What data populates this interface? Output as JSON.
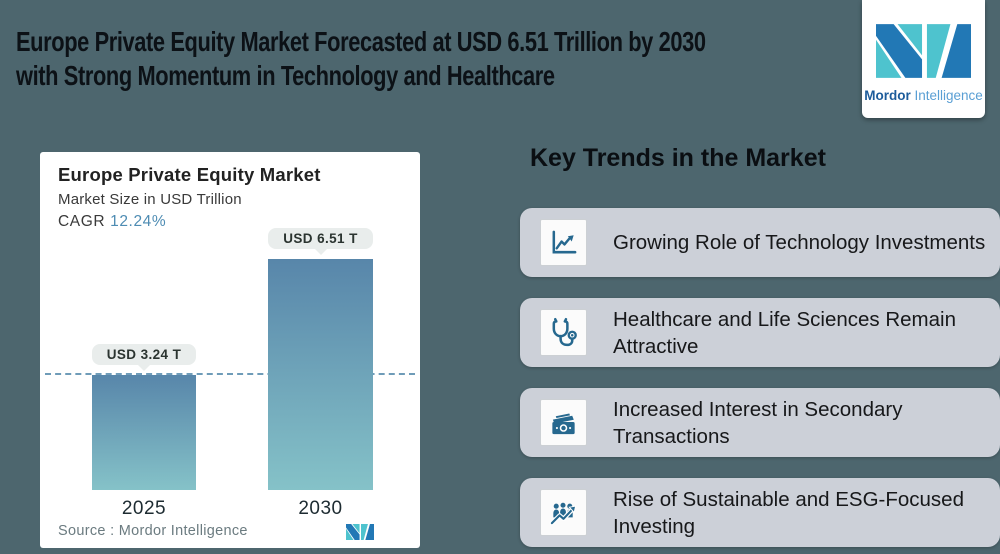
{
  "page": {
    "background": "#4d666e"
  },
  "header": {
    "title_line1": "Europe Private Equity Market Forecasted at USD 6.51 Trillion by 2030",
    "title_line2": "with Strong Momentum in Technology and Healthcare",
    "logo": {
      "brand_bold": "Mordor",
      "brand_light": "Intelligence"
    }
  },
  "chart_card": {
    "title": "Europe Private Equity Market",
    "subtitle": "Market Size in USD Trillion",
    "cagr_label": "CAGR",
    "cagr_value": "12.24%",
    "cagr_color": "#4e8cb3",
    "source_text": "Source :  Mordor Intelligence"
  },
  "chart_data": {
    "type": "bar",
    "title": "Europe Private Equity Market",
    "subtitle": "Market Size in USD Trillion",
    "unit": "USD Trillion",
    "cagr_percent": 12.24,
    "categories": [
      "2025",
      "2030"
    ],
    "values": [
      3.24,
      6.51
    ],
    "value_labels": [
      "USD 3.24 T",
      "USD 6.51 T"
    ],
    "ylim": [
      0,
      6.51
    ],
    "grid": false,
    "legend": "none",
    "reference_line": {
      "y": 3.24,
      "style": "dashed",
      "color": "#6f9cb8"
    },
    "bar_gradient_top": "#5886aa",
    "bar_gradient_bottom": "#85c2c8"
  },
  "trends": {
    "heading": "Key Trends in the Market",
    "card_color": "#ccd0d8",
    "icon_color": "#26688f",
    "items": [
      {
        "icon": "line-chart-icon",
        "label": "Growing Role of Technology Investments"
      },
      {
        "icon": "stethoscope-icon",
        "label": "Healthcare and Life Sciences Remain Attractive"
      },
      {
        "icon": "banknotes-icon",
        "label": "Increased Interest in Secondary Transactions"
      },
      {
        "icon": "people-growth-icon",
        "label": "Rise of Sustainable and ESG-Focused Investing"
      }
    ]
  }
}
